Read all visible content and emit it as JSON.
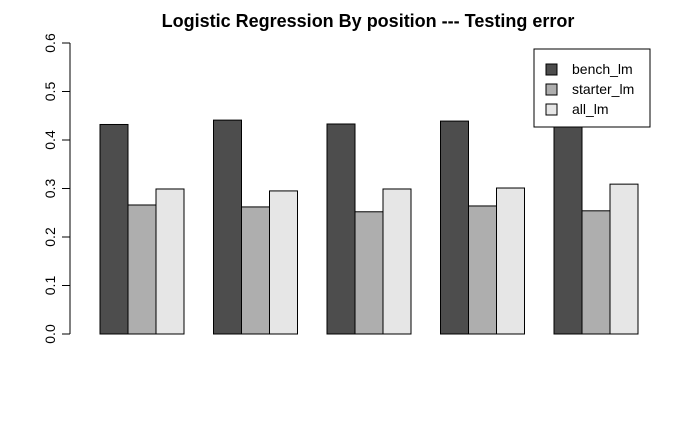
{
  "chart_data": {
    "type": "bar",
    "title": "Logistic Regression By position --- Testing error",
    "xlabel": "",
    "ylabel": "",
    "categories": [
      "",
      "",
      "",
      "",
      ""
    ],
    "ylim": [
      0,
      0.6
    ],
    "yticks": [
      "0.0",
      "0.1",
      "0.2",
      "0.3",
      "0.4",
      "0.5",
      "0.6"
    ],
    "grid": false,
    "legend_position": "top-right",
    "series": [
      {
        "name": "bench_lm",
        "color": "#4d4d4d",
        "values": [
          0.432,
          0.441,
          0.433,
          0.439,
          0.438
        ]
      },
      {
        "name": "starter_lm",
        "color": "#aeaeae",
        "values": [
          0.266,
          0.262,
          0.252,
          0.264,
          0.254
        ]
      },
      {
        "name": "all_lm",
        "color": "#e6e6e6",
        "values": [
          0.299,
          0.295,
          0.299,
          0.301,
          0.309
        ]
      }
    ]
  }
}
